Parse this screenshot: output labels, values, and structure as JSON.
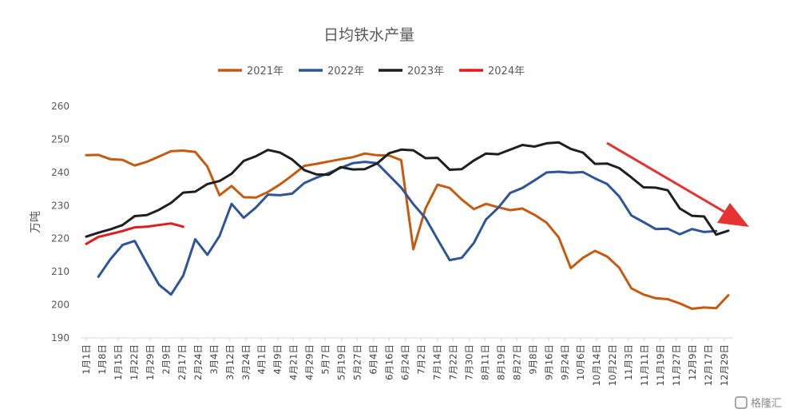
{
  "chart_data": {
    "type": "line",
    "title": "日均铁水产量",
    "ylabel": "万吨",
    "ylim": [
      190,
      260
    ],
    "yticks": [
      190,
      200,
      210,
      220,
      230,
      240,
      250,
      260
    ],
    "grid": false,
    "legend_position": "top",
    "x_tick_labels": [
      "1月1日",
      "1月8日",
      "1月15日",
      "1月22日",
      "1月29日",
      "2月9日",
      "2月17日",
      "2月24日",
      "3月4日",
      "3月12日",
      "3月24日",
      "4月1日",
      "4月9日",
      "4月21日",
      "4月29日",
      "5月7日",
      "5月19日",
      "5月27日",
      "6月4日",
      "6月16日",
      "6月24日",
      "7月2日",
      "7月14日",
      "7月22日",
      "7月30日",
      "8月11日",
      "8月19日",
      "8月27日",
      "9月8日",
      "9月16日",
      "9月24日",
      "10月6日",
      "10月14日",
      "10月22日",
      "11月3日",
      "11月11日",
      "11月19日",
      "11月27日",
      "12月9日",
      "12月17日",
      "12月29日"
    ],
    "series": [
      {
        "name": "2021年",
        "color": "#C55A11",
        "values": [
          245.2,
          245.3,
          244.0,
          243.8,
          242.1,
          243.2,
          244.8,
          246.4,
          246.6,
          246.2,
          241.8,
          233.1,
          235.9,
          232.5,
          232.4,
          234.1,
          236.4,
          239.1,
          242.0,
          242.6,
          243.3,
          244.0,
          244.6,
          245.7,
          245.2,
          245.1,
          243.7,
          216.8,
          229.1,
          236.3,
          235.3,
          231.8,
          228.9,
          230.5,
          229.5,
          228.6,
          229.1,
          227.2,
          224.8,
          220.4,
          211.1,
          214.2,
          216.3,
          214.6,
          211.2,
          205.0,
          203.1,
          202.0,
          201.7,
          200.4,
          198.8,
          199.2,
          199.0,
          202.9
        ]
      },
      {
        "name": "2022年",
        "color": "#2F5597",
        "values": [
          208.5,
          213.8,
          218.1,
          219.3,
          212.6,
          206.1,
          203.1,
          208.8,
          219.8,
          215.1,
          220.8,
          230.5,
          226.3,
          229.4,
          233.3,
          233.1,
          233.6,
          236.8,
          238.4,
          239.8,
          241.4,
          242.8,
          243.2,
          242.8,
          239.1,
          235.4,
          230.4,
          226.2,
          219.8,
          213.5,
          214.2,
          218.7,
          225.8,
          229.3,
          233.8,
          235.3,
          237.6,
          240.0,
          240.2,
          239.9,
          240.1,
          238.2,
          236.5,
          232.7,
          227.0,
          225.0,
          222.9,
          223.0,
          221.3,
          222.9,
          222.0,
          222.3
        ]
      },
      {
        "name": "2023年",
        "color": "#1F1F1F",
        "values": [
          220.6,
          221.8,
          222.8,
          224.1,
          226.8,
          227.1,
          228.7,
          230.8,
          233.9,
          234.2,
          236.5,
          237.4,
          239.6,
          243.5,
          244.9,
          246.8,
          246.0,
          243.9,
          240.7,
          239.4,
          239.3,
          241.6,
          240.9,
          241.0,
          242.7,
          245.8,
          246.9,
          246.7,
          244.3,
          244.4,
          240.8,
          241.0,
          243.6,
          245.7,
          245.5,
          246.9,
          248.3,
          247.8,
          248.8,
          249.1,
          247.1,
          246.0,
          242.6,
          242.7,
          241.3,
          238.5,
          235.5,
          235.4,
          234.6,
          229.1,
          226.9,
          226.7,
          221.2,
          222.4
        ]
      },
      {
        "name": "2024年",
        "color": "#E31A1C",
        "values": [
          218.4,
          220.5,
          221.4,
          222.3,
          223.4,
          223.6,
          224.1,
          224.6,
          223.6
        ]
      }
    ],
    "annotation": {
      "type": "arrow",
      "color": "#E63232",
      "meaning": "downward trend"
    }
  },
  "watermark": {
    "text": "格隆汇"
  }
}
